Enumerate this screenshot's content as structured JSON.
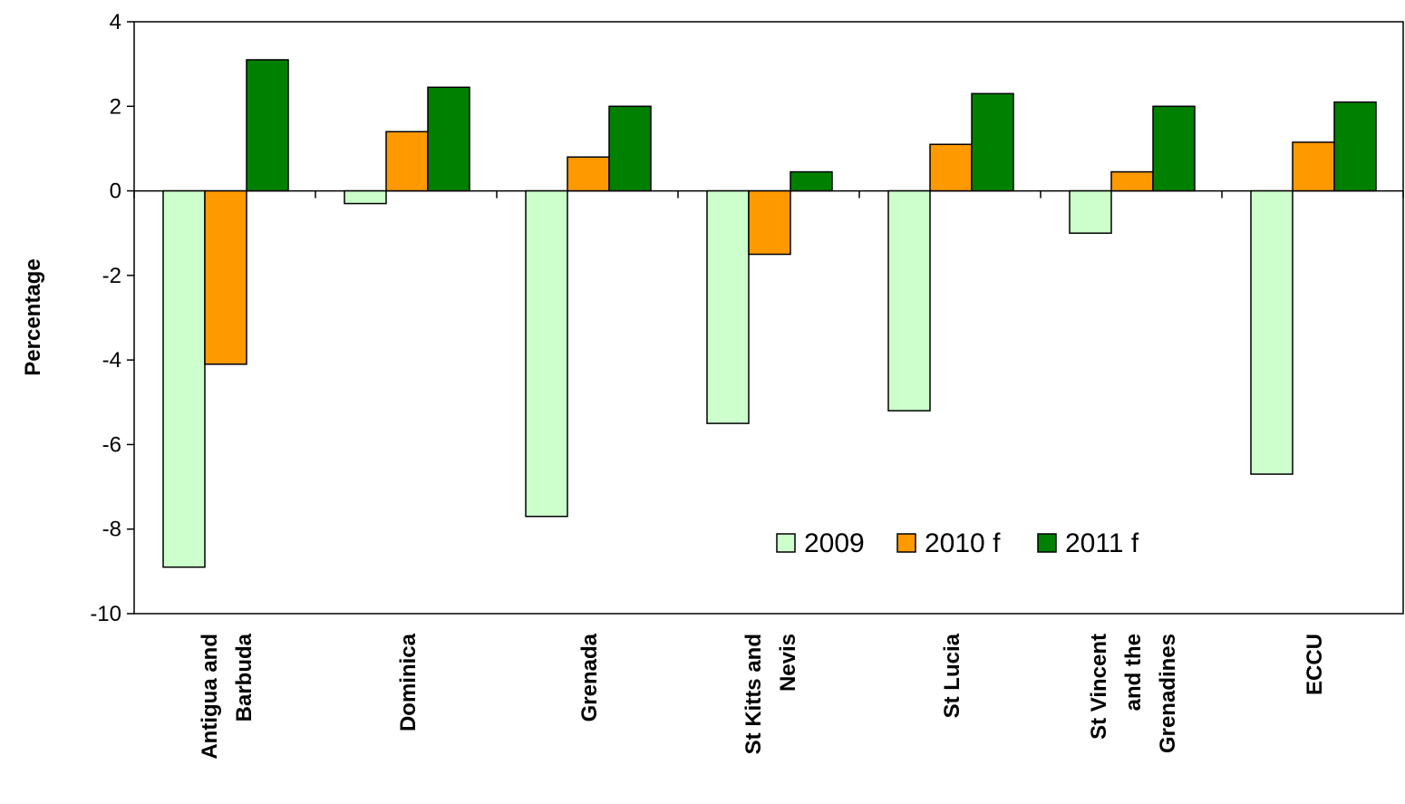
{
  "chart_data": {
    "type": "bar",
    "title": "",
    "xlabel": "",
    "ylabel": "Percentage",
    "ylim": [
      -10,
      4
    ],
    "yticks": [
      4,
      2,
      0,
      -2,
      -4,
      -6,
      -8,
      -10
    ],
    "categories": [
      [
        "Antigua and",
        "Barbuda"
      ],
      [
        "Dominica"
      ],
      [
        "Grenada"
      ],
      [
        "St Kitts and",
        "Nevis"
      ],
      [
        "St Lucia"
      ],
      [
        "St Vincent",
        "and the",
        "Grenadines"
      ],
      [
        "ECCU"
      ]
    ],
    "series": [
      {
        "name": "2009",
        "color": "#ccffcc",
        "values": [
          -8.9,
          -0.3,
          -7.7,
          -5.5,
          -5.2,
          -1.0,
          -6.7
        ]
      },
      {
        "name": "2010 f",
        "color": "#ff9900",
        "values": [
          -4.1,
          1.4,
          0.8,
          -1.5,
          1.1,
          0.45,
          1.15
        ]
      },
      {
        "name": "2011 f",
        "color": "#008000",
        "values": [
          3.1,
          2.45,
          2.0,
          0.45,
          2.3,
          2.0,
          2.1
        ]
      }
    ],
    "legend_position": "lower-right",
    "grid": false
  }
}
